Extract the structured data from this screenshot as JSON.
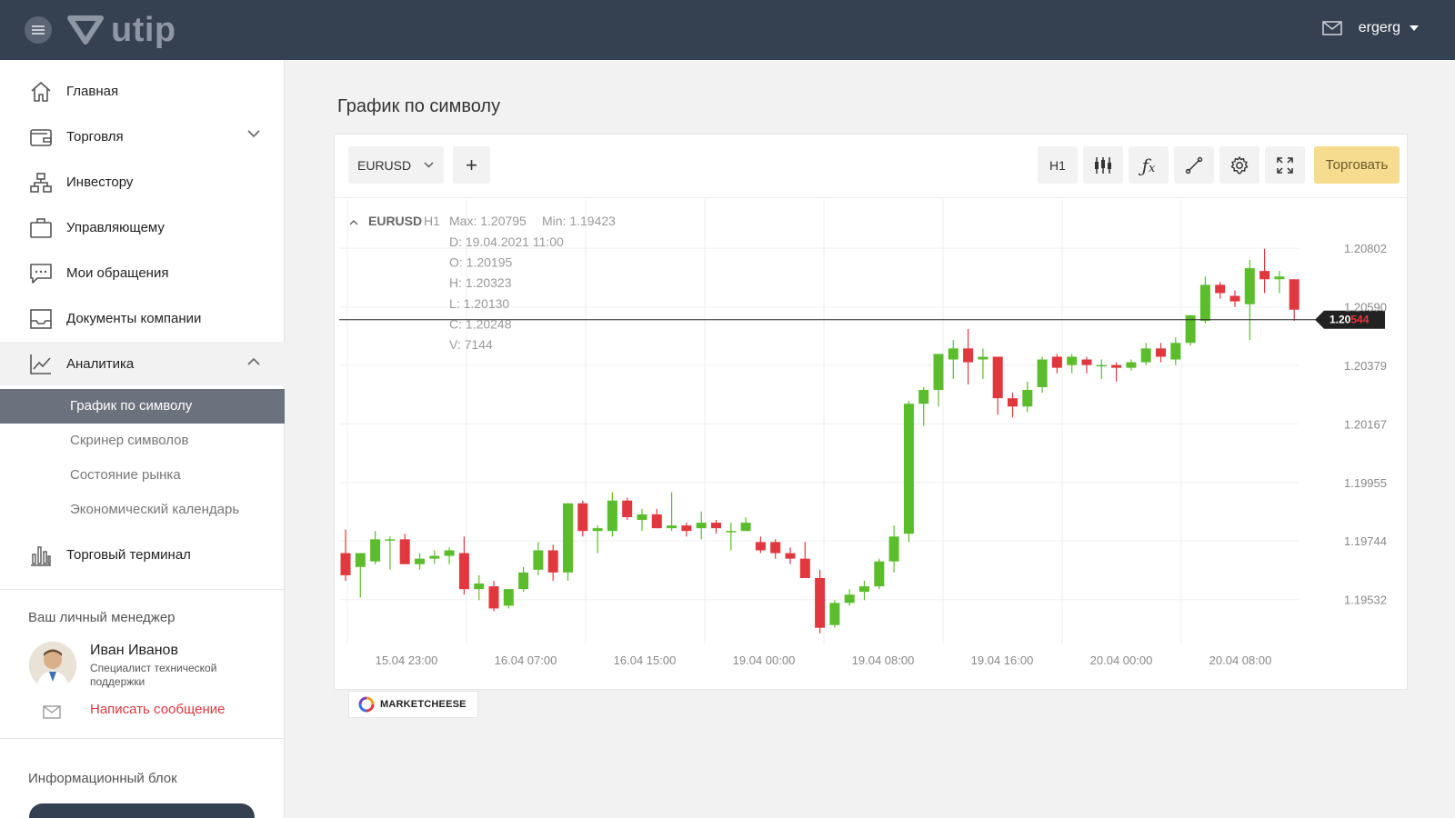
{
  "app": {
    "logo_text": "utip",
    "username": "ergerg"
  },
  "sidebar": {
    "items": [
      {
        "label": "Главная",
        "icon": "home-icon"
      },
      {
        "label": "Торговля",
        "icon": "wallet-icon",
        "expandable": true
      },
      {
        "label": "Инвестору",
        "icon": "structure-icon"
      },
      {
        "label": "Управляющему",
        "icon": "briefcase-icon"
      },
      {
        "label": "Мои обращения",
        "icon": "chat-icon"
      },
      {
        "label": "Документы компании",
        "icon": "inbox-icon"
      },
      {
        "label": "Аналитика",
        "icon": "chart-line-icon",
        "expanded": true
      },
      {
        "label": "Торговый терминал",
        "icon": "bars-icon"
      }
    ],
    "analytics_subitems": [
      {
        "label": "График по символу",
        "active": true
      },
      {
        "label": "Скринер символов"
      },
      {
        "label": "Состояние рынка"
      },
      {
        "label": "Экономический календарь"
      }
    ],
    "manager": {
      "title": "Ваш личный менеджер",
      "name": "Иван Иванов",
      "role": "Специалист технической поддержки",
      "message_link": "Написать сообщение"
    },
    "info_block_title": "Информационный блок"
  },
  "main": {
    "page_title": "График по символу",
    "toolbar": {
      "symbol": "EURUSD",
      "add": "+",
      "timeframe": "H1",
      "trade_button": "Торговать"
    },
    "broker": "MARKETCHEESE"
  },
  "colors": {
    "topbar": "#354051",
    "up": "#5bbd2b",
    "down": "#e0383e",
    "trade_button": "#f6dc8f"
  },
  "chart_data": {
    "type": "candlestick",
    "symbol": "EURUSD",
    "timeframe": "H1",
    "legend": {
      "max": "Max: 1.20795",
      "min": "Min: 1.19423",
      "date": "D: 19.04.2021 11:00",
      "open": "O: 1.20195",
      "high": "H: 1.20323",
      "low": "L: 1.20130",
      "close": "C: 1.20248",
      "volume": "V: 7144"
    },
    "y_ticks": [
      "1.20802",
      "1.20590",
      "1.20379",
      "1.20167",
      "1.19955",
      "1.19744",
      "1.19532"
    ],
    "x_ticks": [
      "15.04 23:00",
      "16.04 07:00",
      "16.04 15:00",
      "19.04 00:00",
      "19.04 08:00",
      "19.04 16:00",
      "20.04 00:00",
      "20.04 08:00"
    ],
    "current_price": {
      "value": 1.20544,
      "main": "1.20",
      "pips": "544"
    },
    "ylim": [
      1.1937,
      1.2098
    ],
    "candles": [
      [
        1.197,
        1.19785,
        1.196,
        1.1962
      ],
      [
        1.1965,
        1.197,
        1.1954,
        1.197
      ],
      [
        1.1967,
        1.1978,
        1.1966,
        1.1975
      ],
      [
        1.1975,
        1.1976,
        1.1964,
        1.1975
      ],
      [
        1.1975,
        1.1977,
        1.1967,
        1.1966
      ],
      [
        1.1966,
        1.197,
        1.1964,
        1.1968
      ],
      [
        1.1968,
        1.1971,
        1.1966,
        1.1969
      ],
      [
        1.1969,
        1.1972,
        1.1966,
        1.1971
      ],
      [
        1.197,
        1.1976,
        1.1955,
        1.1957
      ],
      [
        1.1957,
        1.1962,
        1.1953,
        1.1959
      ],
      [
        1.1958,
        1.196,
        1.1949,
        1.195
      ],
      [
        1.1951,
        1.1957,
        1.195,
        1.1957
      ],
      [
        1.1957,
        1.1965,
        1.1956,
        1.1963
      ],
      [
        1.1964,
        1.1974,
        1.1962,
        1.1971
      ],
      [
        1.1971,
        1.1973,
        1.196,
        1.1963
      ],
      [
        1.1963,
        1.1988,
        1.196,
        1.1988
      ],
      [
        1.1988,
        1.1989,
        1.1976,
        1.1978
      ],
      [
        1.1978,
        1.198,
        1.197,
        1.1979
      ],
      [
        1.1978,
        1.1992,
        1.1976,
        1.1989
      ],
      [
        1.1989,
        1.199,
        1.1982,
        1.1983
      ],
      [
        1.1982,
        1.1986,
        1.1978,
        1.1984
      ],
      [
        1.1984,
        1.1986,
        1.1979,
        1.1979
      ],
      [
        1.1979,
        1.1992,
        1.1978,
        1.198
      ],
      [
        1.198,
        1.1981,
        1.1976,
        1.1978
      ],
      [
        1.1979,
        1.1985,
        1.1975,
        1.1981
      ],
      [
        1.1981,
        1.1982,
        1.1977,
        1.1979
      ],
      [
        1.1978,
        1.1981,
        1.1971,
        1.1978
      ],
      [
        1.1978,
        1.1983,
        1.1978,
        1.1981
      ],
      [
        1.1974,
        1.1976,
        1.197,
        1.1971
      ],
      [
        1.1974,
        1.1975,
        1.1968,
        1.197
      ],
      [
        1.197,
        1.1972,
        1.1966,
        1.1968
      ],
      [
        1.1968,
        1.1974,
        1.1961,
        1.1961
      ],
      [
        1.1961,
        1.1964,
        1.1941,
        1.1943
      ],
      [
        1.1944,
        1.1953,
        1.1943,
        1.1952
      ],
      [
        1.1952,
        1.1957,
        1.1951,
        1.1955
      ],
      [
        1.1956,
        1.196,
        1.1953,
        1.1958
      ],
      [
        1.1958,
        1.1968,
        1.1957,
        1.1967
      ],
      [
        1.1967,
        1.198,
        1.1963,
        1.1976
      ],
      [
        1.1977,
        1.2025,
        1.1974,
        1.2024
      ],
      [
        1.2024,
        1.203,
        1.2016,
        1.2029
      ],
      [
        1.2029,
        1.2042,
        1.2023,
        1.2042
      ],
      [
        1.204,
        1.2047,
        1.2033,
        1.2044
      ],
      [
        1.2044,
        1.2051,
        1.2031,
        1.2039
      ],
      [
        1.204,
        1.2044,
        1.2033,
        1.2041
      ],
      [
        1.2041,
        1.2041,
        1.202,
        1.2026
      ],
      [
        1.2026,
        1.2028,
        1.2019,
        1.2023
      ],
      [
        1.2023,
        1.2032,
        1.2021,
        1.2029
      ],
      [
        1.203,
        1.2041,
        1.2028,
        1.204
      ],
      [
        1.2041,
        1.2042,
        1.2035,
        1.2037
      ],
      [
        1.2038,
        1.2042,
        1.2035,
        1.2041
      ],
      [
        1.204,
        1.2041,
        1.2035,
        1.2038
      ],
      [
        1.2038,
        1.204,
        1.2033,
        1.2038
      ],
      [
        1.2038,
        1.2039,
        1.2032,
        1.2037
      ],
      [
        1.2037,
        1.204,
        1.2036,
        1.2039
      ],
      [
        1.2039,
        1.2046,
        1.2038,
        1.2044
      ],
      [
        1.2044,
        1.2046,
        1.2039,
        1.2041
      ],
      [
        1.204,
        1.2048,
        1.2038,
        1.2046
      ],
      [
        1.2046,
        1.2056,
        1.2045,
        1.2056
      ],
      [
        1.2054,
        1.207,
        1.2053,
        1.2067
      ],
      [
        1.2067,
        1.2068,
        1.2062,
        1.2064
      ],
      [
        1.2063,
        1.2065,
        1.2059,
        1.2061
      ],
      [
        1.206,
        1.2076,
        1.2047,
        1.2073
      ],
      [
        1.2072,
        1.208,
        1.2064,
        1.2069
      ],
      [
        1.2069,
        1.2072,
        1.2064,
        1.207
      ],
      [
        1.2069,
        1.2069,
        1.2054,
        1.2058
      ]
    ]
  }
}
